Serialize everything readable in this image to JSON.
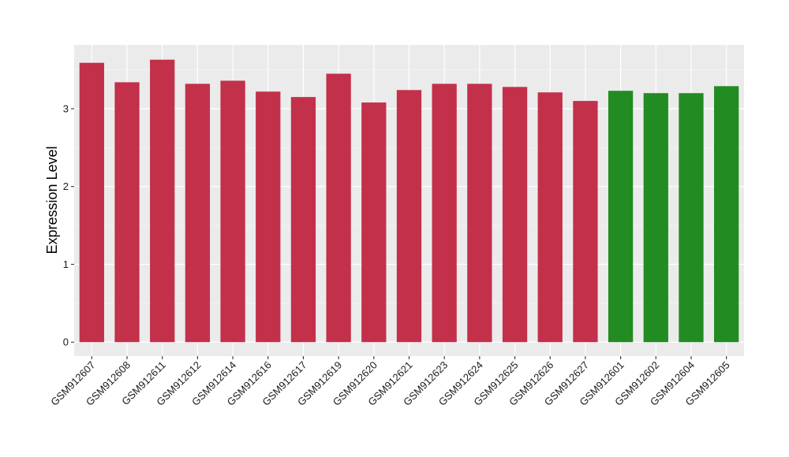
{
  "chart_data": {
    "type": "bar",
    "ylabel": "Expression Level",
    "xlabel": "",
    "ylim": [
      -0.18,
      3.82
    ],
    "yticks": [
      0,
      1,
      2,
      3
    ],
    "grid": true,
    "categories": [
      "GSM912607",
      "GSM912608",
      "GSM912611",
      "GSM912612",
      "GSM912614",
      "GSM912616",
      "GSM912617",
      "GSM912619",
      "GSM912620",
      "GSM912621",
      "GSM912623",
      "GSM912624",
      "GSM912625",
      "GSM912626",
      "GSM912627",
      "GSM912601",
      "GSM912602",
      "GSM912604",
      "GSM912605"
    ],
    "values": [
      3.59,
      3.34,
      3.63,
      3.32,
      3.36,
      3.22,
      3.15,
      3.45,
      3.08,
      3.24,
      3.32,
      3.32,
      3.28,
      3.21,
      3.1,
      3.23,
      3.2,
      3.2,
      3.29
    ],
    "groups": [
      "red",
      "red",
      "red",
      "red",
      "red",
      "red",
      "red",
      "red",
      "red",
      "red",
      "red",
      "red",
      "red",
      "red",
      "red",
      "green",
      "green",
      "green",
      "green"
    ],
    "colors": {
      "red": "#c3304a",
      "green": "#228b22",
      "panel": "#ebebeb",
      "grid_major": "#ffffff",
      "grid_minor": "#f5f5f5",
      "tick": "#333333"
    }
  }
}
